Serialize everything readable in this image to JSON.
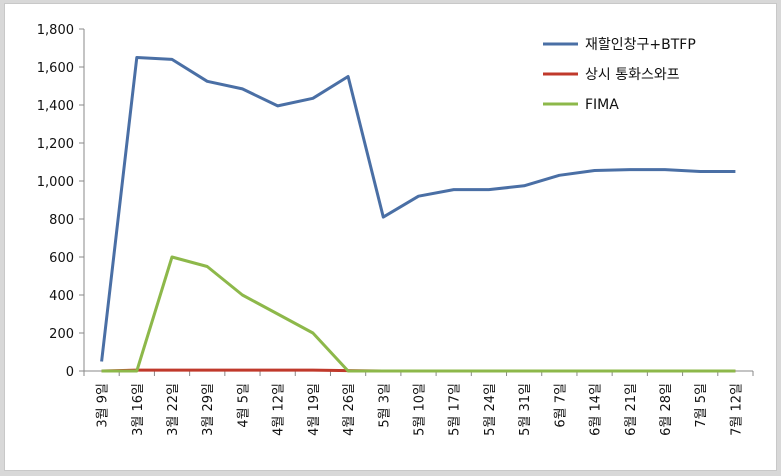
{
  "chart_data": {
    "type": "line",
    "categories": [
      "3월 9일",
      "3월 16일",
      "3월 22일",
      "3월 29일",
      "4월 5일",
      "4월 12일",
      "4월 19일",
      "4월 26일",
      "5월 3일",
      "5월 10일",
      "5월 17일",
      "5월 24일",
      "5월 31일",
      "6월 7일",
      "6월 14일",
      "6월 21일",
      "6월 28일",
      "7월 5일",
      "7월 12일"
    ],
    "series": [
      {
        "name": "재할인창구+BTFP",
        "color": "#4a6fa5",
        "values": [
          50,
          1650,
          1640,
          1525,
          1485,
          1395,
          1435,
          1550,
          810,
          920,
          955,
          955,
          975,
          1030,
          1055,
          1060,
          1060,
          1050,
          1050
        ]
      },
      {
        "name": "상시 통화스와프",
        "color": "#c0392b",
        "values": [
          0,
          5,
          5,
          5,
          5,
          5,
          5,
          2,
          0,
          0,
          0,
          0,
          0,
          0,
          0,
          0,
          0,
          0,
          0
        ]
      },
      {
        "name": "FIMA",
        "color": "#8db84a",
        "values": [
          0,
          0,
          600,
          550,
          400,
          300,
          200,
          0,
          0,
          0,
          0,
          0,
          0,
          0,
          0,
          0,
          0,
          0,
          0
        ]
      }
    ],
    "y_ticks": [
      "0",
      "200",
      "400",
      "600",
      "800",
      "1,000",
      "1,200",
      "1,400",
      "1,600",
      "1,800"
    ],
    "ylim": [
      0,
      1800
    ],
    "grid": false,
    "legend_position": "top-right"
  }
}
